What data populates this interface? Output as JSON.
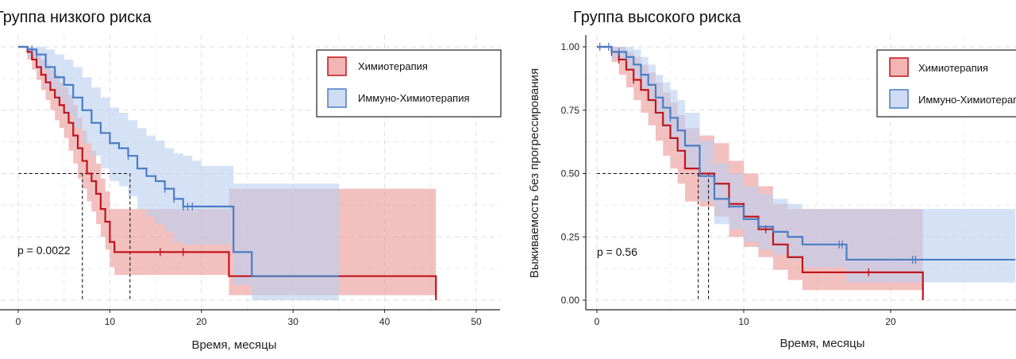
{
  "chart_data": [
    {
      "type": "line",
      "title": "Группа низкого риска",
      "xlabel": "Время, месяцы",
      "ylabel": "",
      "xlim": [
        0,
        50
      ],
      "ylim": [
        0,
        1
      ],
      "xticks": [
        "0",
        "10",
        "20",
        "30",
        "40",
        "50"
      ],
      "yticks": [],
      "grid": true,
      "legend_position": "top-right",
      "annotation": "p = 0.0022",
      "medians": [
        7.0,
        12.2
      ],
      "series": [
        {
          "name": "Химиотерапия",
          "color": "#c0151b",
          "fill": "#ec9a99",
          "x": [
            0,
            1,
            1.5,
            2,
            2.5,
            3,
            3.5,
            4,
            4.5,
            5,
            5.5,
            6,
            6.5,
            7,
            7.5,
            8,
            8.5,
            9,
            9.5,
            10,
            10.5,
            11,
            12,
            15.5,
            18,
            23,
            25,
            35,
            45.6
          ],
          "y": [
            1.0,
            0.98,
            0.95,
            0.92,
            0.89,
            0.86,
            0.83,
            0.8,
            0.77,
            0.74,
            0.7,
            0.65,
            0.6,
            0.55,
            0.5,
            0.47,
            0.42,
            0.36,
            0.31,
            0.23,
            0.19,
            0.19,
            0.19,
            0.19,
            0.19,
            0.095,
            0.095,
            0.095,
            0.0
          ],
          "lower": [
            1.0,
            0.95,
            0.91,
            0.87,
            0.83,
            0.79,
            0.75,
            0.71,
            0.68,
            0.64,
            0.59,
            0.54,
            0.48,
            0.44,
            0.39,
            0.35,
            0.3,
            0.25,
            0.2,
            0.13,
            0.1,
            0.1,
            0.1,
            0.1,
            0.1,
            0.02,
            0.02,
            0.02,
            0.02
          ],
          "upper": [
            1.0,
            1.0,
            0.99,
            0.97,
            0.95,
            0.93,
            0.91,
            0.89,
            0.86,
            0.84,
            0.81,
            0.77,
            0.72,
            0.67,
            0.62,
            0.59,
            0.54,
            0.48,
            0.43,
            0.36,
            0.36,
            0.36,
            0.36,
            0.36,
            0.36,
            0.44,
            0.44,
            0.44,
            0.44
          ],
          "censored": [
            15.5,
            18
          ]
        },
        {
          "name": "Иммуно-Химиотерапия",
          "color": "#4a7cc4",
          "fill": "#bcd1f0",
          "x": [
            0,
            1,
            2,
            3,
            4,
            5,
            6,
            7,
            8,
            9,
            10,
            11,
            12,
            13,
            14,
            15,
            16,
            17,
            18,
            19,
            20,
            23.5,
            25.5,
            35
          ],
          "y": [
            1.0,
            0.99,
            0.97,
            0.92,
            0.88,
            0.85,
            0.8,
            0.75,
            0.7,
            0.66,
            0.62,
            0.6,
            0.57,
            0.52,
            0.49,
            0.47,
            0.44,
            0.4,
            0.37,
            0.37,
            0.37,
            0.19,
            0.095,
            0.095
          ],
          "lower": [
            1.0,
            0.96,
            0.91,
            0.84,
            0.79,
            0.73,
            0.68,
            0.62,
            0.57,
            0.52,
            0.47,
            0.45,
            0.41,
            0.36,
            0.33,
            0.3,
            0.27,
            0.23,
            0.22,
            0.22,
            0.22,
            0.06,
            0.0,
            0.0
          ],
          "upper": [
            1.0,
            1.0,
            1.0,
            0.99,
            0.97,
            0.95,
            0.92,
            0.88,
            0.84,
            0.8,
            0.76,
            0.74,
            0.71,
            0.68,
            0.65,
            0.63,
            0.6,
            0.58,
            0.57,
            0.55,
            0.53,
            0.46,
            0.46,
            0.46
          ],
          "censored": [
            1.5,
            2,
            12,
            16,
            17,
            18,
            18.5,
            19
          ]
        }
      ]
    },
    {
      "type": "line",
      "title": "Группа высокого риска",
      "xlabel": "Время, месяцы",
      "ylabel": "Выживаемость без прогрессирования",
      "xlim": [
        0,
        28.5
      ],
      "ylim": [
        0,
        1
      ],
      "xticks": [
        "0",
        "10",
        "20"
      ],
      "yticks": [
        "0.00",
        "0.25",
        "0.50",
        "0.75",
        "1.00"
      ],
      "grid": true,
      "legend_position": "top-right",
      "annotation": "p = 0.56",
      "medians": [
        6.9,
        7.6
      ],
      "series": [
        {
          "name": "Химиотерапия",
          "color": "#c0151b",
          "fill": "#ec9a99",
          "x": [
            0,
            1,
            1.5,
            2,
            2.5,
            3,
            3.5,
            4,
            4.5,
            5,
            5.5,
            6,
            7,
            8,
            9,
            10,
            11,
            12,
            13,
            14,
            15,
            17,
            19,
            22.2
          ],
          "y": [
            1.0,
            0.98,
            0.95,
            0.91,
            0.87,
            0.83,
            0.79,
            0.74,
            0.69,
            0.64,
            0.59,
            0.52,
            0.5,
            0.46,
            0.38,
            0.33,
            0.28,
            0.22,
            0.17,
            0.11,
            0.11,
            0.11,
            0.11,
            0.0
          ],
          "lower": [
            1.0,
            0.94,
            0.89,
            0.84,
            0.79,
            0.74,
            0.69,
            0.63,
            0.57,
            0.52,
            0.46,
            0.39,
            0.37,
            0.33,
            0.25,
            0.21,
            0.17,
            0.12,
            0.08,
            0.04,
            0.04,
            0.04,
            0.04,
            0.04
          ],
          "upper": [
            1.0,
            1.0,
            1.0,
            0.98,
            0.96,
            0.93,
            0.9,
            0.86,
            0.82,
            0.78,
            0.73,
            0.68,
            0.65,
            0.62,
            0.55,
            0.5,
            0.45,
            0.38,
            0.36,
            0.36,
            0.36,
            0.36,
            0.36,
            0.36
          ],
          "censored": [
            1,
            1.5,
            2.5,
            9,
            11.5,
            18.5
          ]
        },
        {
          "name": "Иммуно-Химиотерапия",
          "color": "#4a7cc4",
          "fill": "#bcd1f0",
          "x": [
            0,
            1,
            2,
            2.5,
            3,
            3.5,
            4,
            4.5,
            5,
            5.5,
            6,
            7,
            8,
            9,
            10,
            11,
            12,
            13,
            14,
            15,
            16,
            17,
            20,
            22.2,
            28.5
          ],
          "y": [
            1.0,
            0.98,
            0.96,
            0.93,
            0.89,
            0.85,
            0.8,
            0.76,
            0.72,
            0.67,
            0.61,
            0.49,
            0.4,
            0.37,
            0.32,
            0.29,
            0.27,
            0.25,
            0.22,
            0.22,
            0.22,
            0.16,
            0.16,
            0.16,
            0.16
          ],
          "lower": [
            1.0,
            0.95,
            0.91,
            0.88,
            0.83,
            0.78,
            0.73,
            0.68,
            0.63,
            0.58,
            0.52,
            0.39,
            0.3,
            0.28,
            0.23,
            0.2,
            0.18,
            0.16,
            0.13,
            0.13,
            0.13,
            0.07,
            0.07,
            0.07,
            0.07
          ],
          "upper": [
            1.0,
            1.0,
            1.0,
            0.99,
            0.96,
            0.93,
            0.89,
            0.86,
            0.83,
            0.79,
            0.74,
            0.63,
            0.54,
            0.5,
            0.45,
            0.42,
            0.4,
            0.38,
            0.36,
            0.36,
            0.36,
            0.36,
            0.36,
            0.36,
            0.36
          ],
          "censored": [
            0.2,
            0.8,
            1.5,
            2,
            3,
            5,
            16.5,
            16.7,
            21.5,
            21.7
          ]
        }
      ]
    }
  ]
}
